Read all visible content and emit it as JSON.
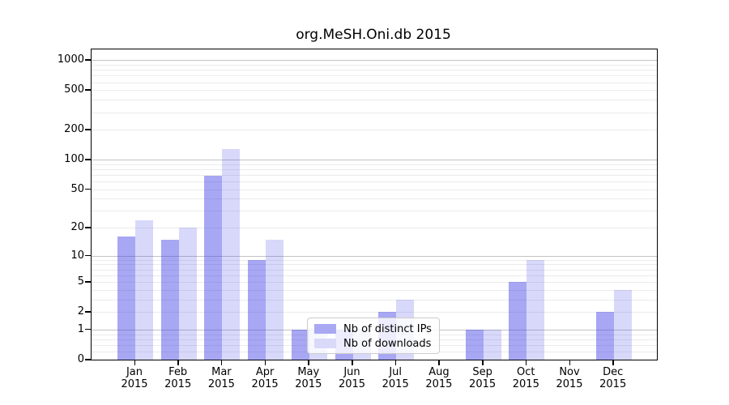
{
  "title": "org.MeSH.Oni.db 2015",
  "chart_data": {
    "type": "bar",
    "title": "org.MeSH.Oni.db 2015",
    "categories": [
      "Jan",
      "Feb",
      "Mar",
      "Apr",
      "May",
      "Jun",
      "Jul",
      "Aug",
      "Sep",
      "Oct",
      "Nov",
      "Dec"
    ],
    "year_label": "2015",
    "series": [
      {
        "name": "Nb of distinct IPs",
        "key": "ips",
        "values": [
          16,
          15,
          68,
          9,
          1,
          1,
          2,
          0,
          1,
          5,
          0,
          2
        ]
      },
      {
        "name": "Nb of downloads",
        "key": "downloads",
        "values": [
          24,
          20,
          127,
          15,
          1,
          1,
          3,
          0,
          1,
          9,
          0,
          4
        ]
      }
    ],
    "y_ticks": [
      0,
      1,
      2,
      5,
      10,
      20,
      50,
      100,
      200,
      500,
      1000
    ],
    "y_scale": "log1p",
    "ylim": [
      0,
      1280
    ],
    "grid": true,
    "legend_position": "lower-center",
    "colors": {
      "ips_bar": "rgba(60,60,230,0.45)",
      "downloads_bar": "rgba(60,60,230,0.2)",
      "ips_solid": "#a8a8f3",
      "downloads_solid": "#d9d9f9",
      "grid_minor": "#ebebeb",
      "grid_major": "#c3c3c3",
      "axis": "#000000"
    }
  }
}
